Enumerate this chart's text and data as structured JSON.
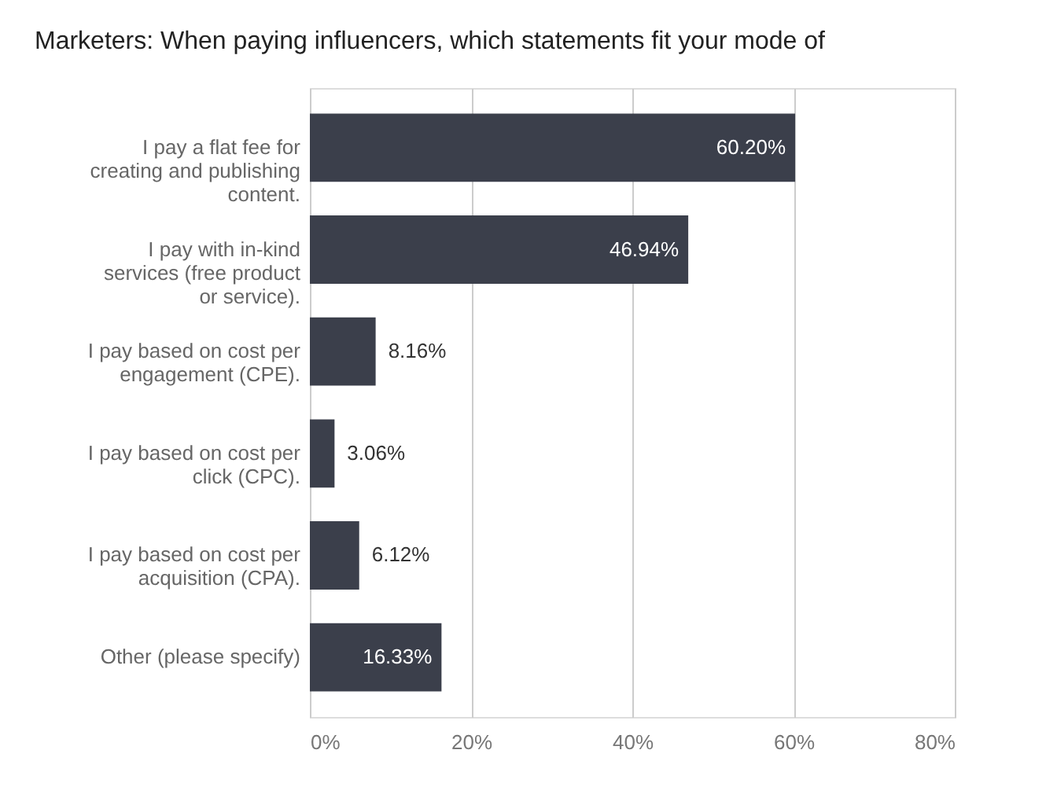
{
  "chart_data": {
    "type": "bar",
    "orientation": "horizontal",
    "title": "Marketers: When paying influencers, which statements fit your mode of",
    "categories": [
      "I pay a flat fee for creating and publishing content.",
      "I pay with in-kind services (free product or service).",
      "I pay based on cost per engagement (CPE).",
      "I pay based on cost per click (CPC).",
      "I pay based on cost per acquisition (CPA).",
      "Other (please specify)"
    ],
    "values": [
      60.2,
      46.94,
      8.16,
      3.06,
      6.12,
      16.33
    ],
    "value_labels": [
      "60.20%",
      "46.94%",
      "8.16%",
      "3.06%",
      "6.12%",
      "16.33%"
    ],
    "color": "#3b3f4b",
    "xlim": [
      0,
      80
    ],
    "xticks": [
      {
        "value": 0,
        "label": "0%"
      },
      {
        "value": 20,
        "label": "20%"
      },
      {
        "value": 40,
        "label": "40%"
      },
      {
        "value": 60,
        "label": "60%"
      },
      {
        "value": 80,
        "label": "80%"
      }
    ],
    "grid": "x"
  }
}
